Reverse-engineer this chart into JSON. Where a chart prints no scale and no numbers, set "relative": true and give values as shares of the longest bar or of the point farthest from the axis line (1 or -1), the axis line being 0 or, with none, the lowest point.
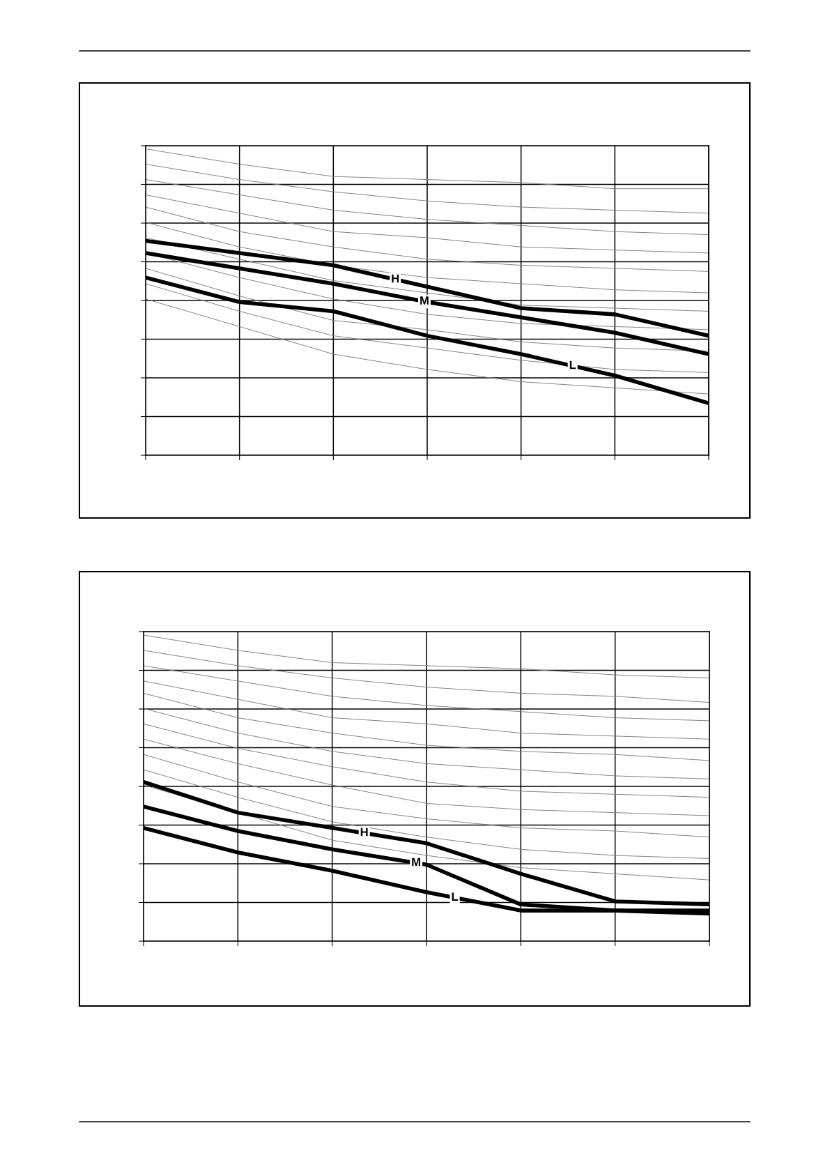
{
  "chart_data": [
    {
      "type": "line",
      "relative": true,
      "grid": true,
      "tick_labels": false,
      "categories": [
        null,
        null,
        null,
        null,
        null,
        null,
        null
      ],
      "series": [
        {
          "color": "#808080",
          "values": [
            1.0,
            0.95,
            0.91,
            0.9,
            0.89,
            0.87,
            0.87
          ]
        },
        {
          "color": "#808080",
          "values": [
            0.95,
            0.9,
            0.86,
            0.83,
            0.81,
            0.8,
            0.79
          ]
        },
        {
          "color": "#808080",
          "values": [
            0.9,
            0.85,
            0.8,
            0.77,
            0.75,
            0.73,
            0.72
          ]
        },
        {
          "color": "#808080",
          "values": [
            0.85,
            0.79,
            0.73,
            0.71,
            0.68,
            0.67,
            0.66
          ]
        },
        {
          "color": "#808080",
          "values": [
            0.81,
            0.73,
            0.68,
            0.64,
            0.62,
            0.61,
            0.6
          ]
        },
        {
          "color": "#808080",
          "values": [
            0.76,
            0.68,
            0.62,
            0.58,
            0.56,
            0.54,
            0.53
          ]
        },
        {
          "color": "#808080",
          "values": [
            0.71,
            0.64,
            0.57,
            0.53,
            0.49,
            0.48,
            0.47
          ]
        },
        {
          "color": "#808080",
          "values": [
            0.66,
            0.58,
            0.51,
            0.46,
            0.43,
            0.42,
            0.41
          ]
        },
        {
          "color": "#808080",
          "values": [
            0.61,
            0.52,
            0.44,
            0.41,
            0.37,
            0.35,
            0.34
          ]
        },
        {
          "color": "#808080",
          "values": [
            0.56,
            0.47,
            0.39,
            0.35,
            0.31,
            0.28,
            0.27
          ]
        },
        {
          "color": "#808080",
          "values": [
            0.51,
            0.42,
            0.33,
            0.28,
            0.24,
            0.22,
            0.2
          ]
        },
        {
          "name": "H",
          "color": "#000000",
          "values": [
            0.7,
            0.66,
            0.62,
            0.55,
            0.48,
            0.46,
            0.39
          ]
        },
        {
          "name": "M",
          "color": "#000000",
          "values": [
            0.66,
            0.61,
            0.56,
            0.5,
            0.45,
            0.4,
            0.33
          ]
        },
        {
          "name": "L",
          "color": "#000000",
          "values": [
            0.58,
            0.5,
            0.47,
            0.39,
            0.33,
            0.26,
            0.17
          ]
        }
      ]
    },
    {
      "type": "line",
      "relative": true,
      "grid": true,
      "tick_labels": false,
      "categories": [
        null,
        null,
        null,
        null,
        null,
        null,
        null
      ],
      "series": [
        {
          "color": "#808080",
          "values": [
            1.0,
            0.95,
            0.91,
            0.9,
            0.89,
            0.87,
            0.86
          ]
        },
        {
          "color": "#808080",
          "values": [
            0.95,
            0.9,
            0.86,
            0.83,
            0.81,
            0.8,
            0.78
          ]
        },
        {
          "color": "#808080",
          "values": [
            0.9,
            0.85,
            0.8,
            0.77,
            0.75,
            0.73,
            0.72
          ]
        },
        {
          "color": "#808080",
          "values": [
            0.85,
            0.79,
            0.73,
            0.71,
            0.68,
            0.67,
            0.66
          ]
        },
        {
          "color": "#808080",
          "values": [
            0.81,
            0.73,
            0.68,
            0.64,
            0.62,
            0.61,
            0.59
          ]
        },
        {
          "color": "#808080",
          "values": [
            0.76,
            0.68,
            0.62,
            0.58,
            0.56,
            0.54,
            0.53
          ]
        },
        {
          "color": "#808080",
          "values": [
            0.71,
            0.63,
            0.57,
            0.52,
            0.49,
            0.48,
            0.47
          ]
        },
        {
          "color": "#808080",
          "values": [
            0.66,
            0.58,
            0.51,
            0.45,
            0.43,
            0.42,
            0.41
          ]
        },
        {
          "color": "#808080",
          "values": [
            0.61,
            0.52,
            0.44,
            0.4,
            0.37,
            0.36,
            0.34
          ]
        },
        {
          "color": "#808080",
          "values": [
            0.56,
            0.47,
            0.39,
            0.34,
            0.3,
            0.28,
            0.27
          ]
        },
        {
          "color": "#808080",
          "values": [
            0.51,
            0.42,
            0.33,
            0.28,
            0.24,
            0.22,
            0.2
          ]
        },
        {
          "name": "H",
          "color": "#000000",
          "values": [
            0.52,
            0.42,
            0.37,
            0.32,
            0.22,
            0.13,
            0.12
          ]
        },
        {
          "name": "M",
          "color": "#000000",
          "values": [
            0.44,
            0.36,
            0.3,
            0.25,
            0.12,
            0.1,
            0.1
          ]
        },
        {
          "name": "L",
          "color": "#000000",
          "values": [
            0.37,
            0.29,
            0.23,
            0.16,
            0.1,
            0.1,
            0.09
          ]
        }
      ]
    }
  ]
}
